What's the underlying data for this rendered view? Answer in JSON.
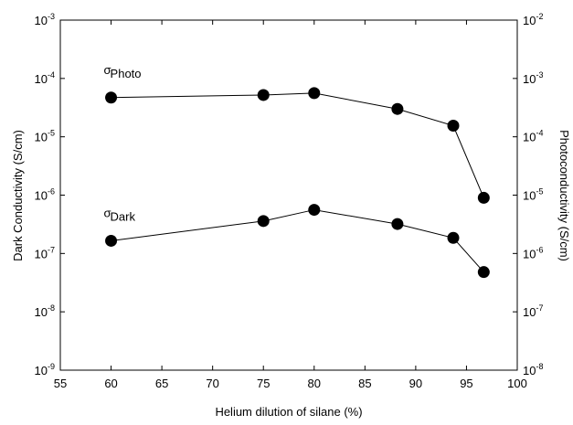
{
  "chart_data": {
    "type": "line",
    "x_label": "Helium dilution of silane (%)",
    "y_label": "Dark Conductivity (S/cm)",
    "y2_label": "Photoconductivity (S/cm)",
    "xlim": [
      55,
      100
    ],
    "xticks": [
      55,
      60,
      65,
      70,
      75,
      80,
      85,
      90,
      95,
      100
    ],
    "ylim": [
      1e-09,
      0.001
    ],
    "log_y": true,
    "yticks": [
      {
        "value": 1e-09,
        "label": "10-9"
      },
      {
        "value": 1e-08,
        "label": "10-8"
      },
      {
        "value": 1e-07,
        "label": "10-7"
      },
      {
        "value": 1e-06,
        "label": "10-6"
      },
      {
        "value": 1e-05,
        "label": "10-5"
      },
      {
        "value": 0.0001,
        "label": "10-4"
      },
      {
        "value": 0.001,
        "label": "10-3"
      }
    ],
    "y2lim": [
      1e-08,
      0.01
    ],
    "log_y2": true,
    "y2ticks": [
      {
        "value": 1e-08,
        "label": "10-8"
      },
      {
        "value": 1e-07,
        "label": "10-7"
      },
      {
        "value": 1e-06,
        "label": "10-6"
      },
      {
        "value": 1e-05,
        "label": "10-5"
      },
      {
        "value": 0.0001,
        "label": "10-4"
      },
      {
        "value": 0.001,
        "label": "10-3"
      },
      {
        "value": 0.01,
        "label": "10-2"
      }
    ],
    "x": [
      60,
      75,
      80,
      88.2,
      93.7,
      96.7
    ],
    "series": [
      {
        "name": "Photo",
        "symbol": "σ",
        "color": "#000000",
        "axis": "y2",
        "values": [
          0.00047,
          0.00052,
          0.00056,
          0.0003,
          0.000155,
          9e-06
        ]
      },
      {
        "name": "Dark",
        "symbol": "σ",
        "color": "#000000",
        "axis": "y",
        "values": [
          1.65e-07,
          3.6e-07,
          5.6e-07,
          3.2e-07,
          1.85e-07,
          4.8e-08
        ]
      }
    ]
  }
}
